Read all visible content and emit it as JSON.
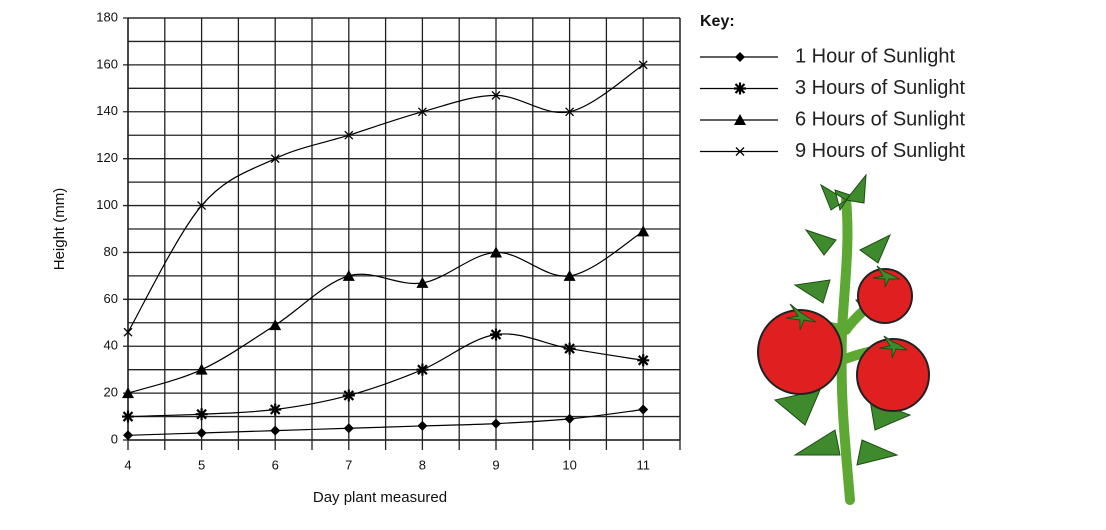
{
  "chart_data": {
    "type": "line",
    "x_label": "Day plant measured",
    "y_label": "Height (mm)",
    "legend_title": "Key:",
    "x": [
      4,
      5,
      6,
      7,
      8,
      9,
      10,
      11
    ],
    "series": [
      {
        "name": "1 Hour of Sunlight",
        "color": "#000000",
        "marker": "diamond",
        "values": [
          2,
          3,
          4,
          5,
          6,
          7,
          9,
          13
        ]
      },
      {
        "name": "3 Hours of Sunlight",
        "color": "#000000",
        "marker": "star",
        "values": [
          10,
          11,
          13,
          19,
          30,
          45,
          39,
          34
        ]
      },
      {
        "name": "6 Hours of Sunlight",
        "color": "#000000",
        "marker": "triangle",
        "values": [
          20,
          30,
          49,
          70,
          67,
          80,
          70,
          89
        ]
      },
      {
        "name": "9 Hours of Sunlight",
        "color": "#000000",
        "marker": "x",
        "values": [
          46,
          100,
          120,
          130,
          140,
          147,
          140,
          160
        ]
      }
    ],
    "xlim": [
      4,
      11.5
    ],
    "xticks": [
      4,
      5,
      6,
      7,
      8,
      9,
      10,
      11
    ],
    "ylim": [
      0,
      180
    ],
    "yticks": [
      0,
      20,
      40,
      60,
      80,
      100,
      120,
      140,
      160,
      180
    ],
    "grid": true
  }
}
